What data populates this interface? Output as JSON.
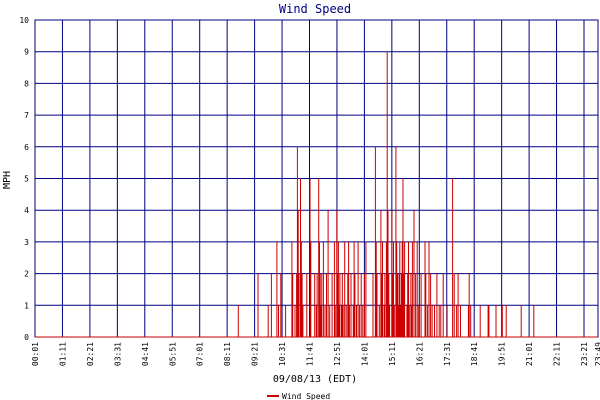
{
  "chart_data": {
    "type": "line",
    "title": "Wind Speed",
    "ylabel": "MPH",
    "xlabel": "09/08/13 (EDT)",
    "ylim": [
      0,
      10
    ],
    "yticks": [
      "0",
      "1",
      "2",
      "3",
      "4",
      "5",
      "6",
      "7",
      "8",
      "9",
      "10"
    ],
    "xticks": [
      "00:01",
      "01:11",
      "02:21",
      "03:31",
      "04:41",
      "05:51",
      "07:01",
      "08:11",
      "09:21",
      "10:31",
      "11:41",
      "12:51",
      "14:01",
      "15:11",
      "16:21",
      "17:31",
      "18:41",
      "19:51",
      "21:01",
      "22:11",
      "23:21",
      "23:49"
    ],
    "grid": true,
    "legend": "bottom-center",
    "series": [
      {
        "name": "Wind Speed",
        "color": "#cc0000",
        "x_minutes": [
          0,
          516,
          522,
          566,
          592,
          600,
          614,
          618,
          624,
          636,
          652,
          654,
          660,
          664,
          666,
          668,
          670,
          674,
          676,
          678,
          680,
          690,
          698,
          700,
          710,
          714,
          716,
          720,
          722,
          724,
          726,
          728,
          732,
          736,
          740,
          744,
          748,
          754,
          760,
          762,
          766,
          768,
          770,
          772,
          774,
          778,
          780,
          782,
          786,
          790,
          794,
          796,
          798,
          802,
          808,
          810,
          812,
          816,
          820,
          824,
          828,
          832,
          836,
          840,
          858,
          864,
          866,
          868,
          874,
          878,
          880,
          882,
          886,
          888,
          892,
          894,
          896,
          898,
          900,
          906,
          908,
          910,
          912,
          916,
          918,
          920,
          922,
          924,
          926,
          928,
          930,
          932,
          934,
          936,
          938,
          944,
          946,
          948,
          950,
          954,
          956,
          958,
          962,
          966,
          970,
          974,
          980,
          990,
          992,
          996,
          1000,
          1004,
          1008,
          1014,
          1020,
          1026,
          1030,
          1036,
          1046,
          1060,
          1064,
          1070,
          1074,
          1080,
          1100,
          1102,
          1106,
          1130,
          1150,
          1152,
          1170,
          1186,
          1190,
          1196,
          1210,
          1230,
          1234,
          1260,
          1266,
          1300,
          1310,
          1340,
          1346,
          1374,
          1380,
          1410,
          1429
        ],
        "y": [
          0,
          1,
          0,
          2,
          1,
          2,
          3,
          1,
          2,
          1,
          3,
          2,
          1,
          2,
          6,
          4,
          2,
          5,
          3,
          2,
          1,
          2,
          5,
          3,
          2,
          1,
          2,
          5,
          3,
          2,
          1,
          2,
          3,
          1,
          2,
          4,
          1,
          2,
          3,
          1,
          4,
          2,
          3,
          1,
          2,
          1,
          2,
          1,
          3,
          1,
          2,
          3,
          1,
          2,
          1,
          3,
          2,
          1,
          3,
          1,
          2,
          1,
          2,
          3,
          2,
          6,
          3,
          2,
          1,
          4,
          2,
          3,
          1,
          2,
          3,
          9,
          4,
          2,
          1,
          4,
          2,
          3,
          1,
          6,
          3,
          2,
          1,
          2,
          3,
          1,
          2,
          3,
          5,
          2,
          3,
          1,
          2,
          3,
          1,
          2,
          1,
          3,
          4,
          2,
          3,
          1,
          2,
          3,
          2,
          1,
          3,
          2,
          1,
          1,
          2,
          1,
          1,
          2,
          1,
          5,
          2,
          1,
          2,
          1,
          1,
          2,
          1,
          1,
          1,
          1,
          1,
          1,
          0,
          1,
          0,
          0,
          1,
          0,
          1,
          0,
          0,
          0,
          0,
          0,
          0,
          0,
          0
        ]
      }
    ]
  }
}
